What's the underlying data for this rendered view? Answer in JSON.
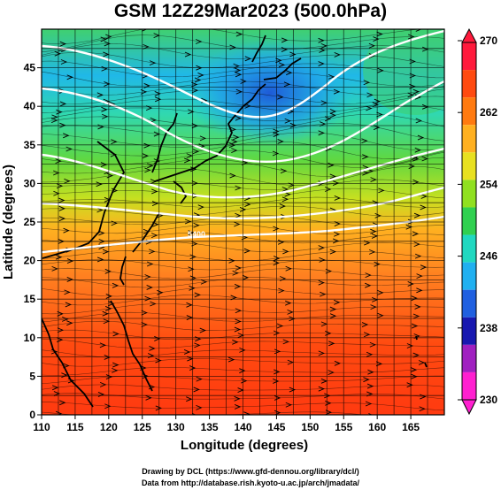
{
  "title": "GSM 12Z29Mar2023 (500.0hPa)",
  "map": {
    "lon_range": [
      110,
      170
    ],
    "lat_range": [
      0,
      50
    ],
    "lon_ticks": [
      110,
      115,
      120,
      125,
      130,
      135,
      140,
      145,
      150,
      155,
      160,
      165
    ],
    "lat_ticks": [
      0,
      5,
      10,
      15,
      20,
      25,
      30,
      35,
      40,
      45
    ],
    "xlabel": "Longitude (degrees)",
    "ylabel": "Latitude (degrees)",
    "grid": true,
    "contour_label": "5400"
  },
  "colorbar": {
    "ticks": [
      "270",
      "262",
      "254",
      "246",
      "238",
      "230"
    ],
    "colors": [
      "#ff1a3c",
      "#ff4a10",
      "#ff7a10",
      "#ffb020",
      "#e8e020",
      "#90e020",
      "#30d050",
      "#20d8c0",
      "#20b0f0",
      "#2060e0",
      "#1818b0",
      "#a020c0",
      "#ff20d0"
    ]
  },
  "credits": {
    "line1": "Drawing by DCL (https://www.gfd-dennou.org/library/dcl/)",
    "line2": "Data from http://database.rish.kyoto-u.ac.jp/arch/jmadata/"
  }
}
